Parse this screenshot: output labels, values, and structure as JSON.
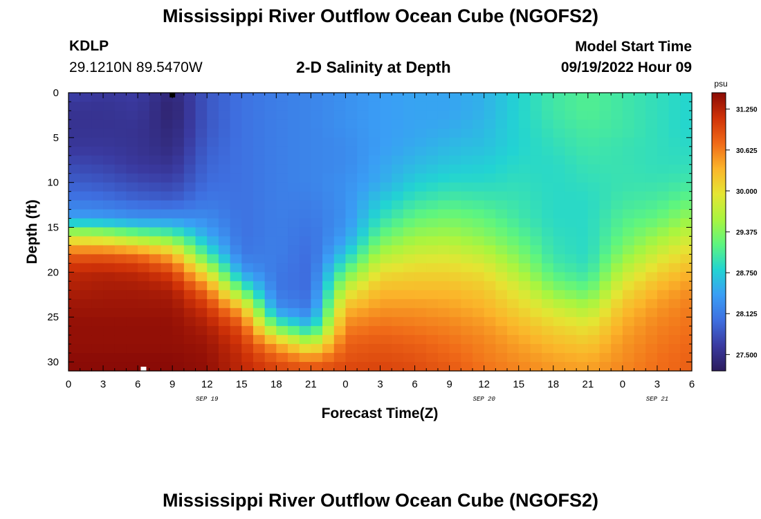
{
  "header": {
    "title": "Mississippi River Outflow Ocean Cube (NGOFS2)",
    "station_id": "KDLP",
    "station_coords": "29.1210N  89.5470W",
    "plot_title": "2-D Salinity at Depth",
    "model_start_label": "Model Start Time",
    "model_start_value": "09/19/2022 Hour 09"
  },
  "footer": {
    "title": "Mississippi River Outflow Ocean Cube (NGOFS2)"
  },
  "colors": {
    "ramp": [
      "#2b1b5c",
      "#3a3aa0",
      "#3e6fe0",
      "#3a9ef5",
      "#22d4d2",
      "#5ef57f",
      "#a9f53f",
      "#e5e533",
      "#fbb52a",
      "#f06a18",
      "#cf3208",
      "#8a0b06"
    ],
    "axis": "#000000",
    "marker_surface": "#000000",
    "marker_bottom": "#ffffff"
  },
  "chart_data": {
    "type": "heatmap",
    "title": "2-D Salinity at Depth",
    "xlabel": "Forecast Time(Z)",
    "ylabel": "Depth (ft)",
    "x_unit": "hours from 2022-09-19 00Z",
    "xlim": [
      0,
      54
    ],
    "ylim": [
      31,
      0
    ],
    "x_ticks": [
      0,
      3,
      6,
      9,
      12,
      15,
      18,
      21,
      24,
      27,
      30,
      33,
      36,
      39,
      42,
      45,
      48,
      51,
      54
    ],
    "x_tick_labels": [
      "0",
      "3",
      "6",
      "9",
      "12",
      "15",
      "18",
      "21",
      "0",
      "3",
      "6",
      "9",
      "12",
      "15",
      "18",
      "21",
      "0",
      "3",
      "6"
    ],
    "y_ticks": [
      0,
      5,
      10,
      15,
      20,
      25,
      30
    ],
    "y_tick_labels": [
      "0",
      "5",
      "10",
      "15",
      "20",
      "25",
      "30"
    ],
    "date_labels": [
      {
        "x": 12,
        "text": "SEP 19"
      },
      {
        "x": 36,
        "text": "SEP 20"
      },
      {
        "x": 51,
        "text": "SEP 21"
      }
    ],
    "colorbar": {
      "unit": "psu",
      "min": 27.25,
      "max": 31.5,
      "ticks": [
        27.5,
        28.125,
        28.75,
        29.375,
        30.0,
        30.625,
        31.25
      ],
      "tick_labels": [
        "27.500",
        "28.125",
        "28.750",
        "29.375",
        "30.000",
        "30.625",
        "31.250"
      ]
    },
    "depth_levels_ft": [
      0,
      2,
      4,
      6,
      8,
      10,
      12,
      14,
      16,
      18,
      20,
      22,
      24,
      26,
      28,
      30,
      31
    ],
    "profile_times": [
      0,
      3,
      6,
      9,
      12,
      15,
      18,
      21,
      24,
      27,
      30,
      33,
      36,
      39,
      42,
      45,
      48,
      51,
      54
    ],
    "salinity": [
      [
        27.7,
        27.55,
        27.55,
        27.6,
        27.75,
        27.9,
        28.1,
        28.45,
        29.8,
        30.8,
        31.2,
        31.3,
        31.4,
        31.45,
        31.45,
        31.5,
        31.5
      ],
      [
        27.6,
        27.55,
        27.55,
        27.6,
        27.7,
        27.85,
        28.05,
        28.4,
        29.7,
        30.8,
        31.25,
        31.35,
        31.4,
        31.45,
        31.45,
        31.5,
        31.5
      ],
      [
        27.65,
        27.6,
        27.55,
        27.55,
        27.6,
        27.75,
        27.95,
        28.3,
        29.4,
        30.7,
        31.2,
        31.35,
        31.4,
        31.45,
        31.45,
        31.5,
        31.5
      ],
      [
        27.4,
        27.35,
        27.4,
        27.45,
        27.55,
        27.7,
        27.9,
        28.3,
        29.2,
        30.3,
        31.0,
        31.3,
        31.4,
        31.45,
        31.45,
        31.5,
        31.5
      ],
      [
        27.85,
        27.85,
        27.85,
        27.9,
        27.95,
        28.0,
        28.1,
        28.25,
        28.5,
        29.0,
        29.9,
        30.7,
        31.1,
        31.3,
        31.4,
        31.45,
        31.45
      ],
      [
        28.05,
        28.05,
        28.05,
        28.05,
        28.05,
        28.05,
        28.05,
        28.05,
        28.05,
        28.1,
        28.4,
        29.2,
        30.3,
        30.9,
        31.1,
        31.2,
        31.2
      ],
      [
        28.15,
        28.15,
        28.15,
        28.15,
        28.15,
        28.15,
        28.15,
        28.15,
        28.15,
        28.15,
        28.1,
        28.1,
        28.3,
        29.2,
        30.4,
        30.9,
        31.0
      ],
      [
        28.2,
        28.2,
        28.2,
        28.2,
        28.2,
        28.2,
        28.15,
        28.1,
        28.05,
        28.0,
        28.0,
        28.0,
        28.1,
        28.6,
        29.7,
        30.7,
        30.9
      ],
      [
        28.3,
        28.3,
        28.3,
        28.25,
        28.25,
        28.3,
        28.3,
        28.3,
        28.4,
        28.7,
        29.2,
        29.8,
        30.3,
        30.6,
        30.8,
        30.9,
        31.0
      ],
      [
        28.4,
        28.4,
        28.4,
        28.4,
        28.45,
        28.5,
        28.7,
        28.9,
        29.2,
        29.6,
        30.0,
        30.3,
        30.5,
        30.7,
        30.85,
        30.95,
        31.0
      ],
      [
        28.45,
        28.45,
        28.45,
        28.5,
        28.6,
        28.75,
        28.95,
        29.2,
        29.5,
        29.8,
        30.1,
        30.3,
        30.5,
        30.65,
        30.8,
        30.9,
        30.95
      ],
      [
        28.45,
        28.45,
        28.5,
        28.6,
        28.7,
        28.85,
        29.05,
        29.3,
        29.55,
        29.85,
        30.1,
        30.3,
        30.45,
        30.6,
        30.7,
        30.8,
        30.85
      ],
      [
        28.55,
        28.55,
        28.6,
        28.65,
        28.75,
        28.85,
        29.0,
        29.2,
        29.4,
        29.7,
        30.0,
        30.2,
        30.35,
        30.5,
        30.6,
        30.65,
        30.7
      ],
      [
        28.8,
        28.8,
        28.8,
        28.8,
        28.85,
        28.9,
        28.95,
        29.0,
        29.15,
        29.35,
        29.6,
        29.9,
        30.1,
        30.3,
        30.45,
        30.55,
        30.6
      ],
      [
        29.0,
        29.0,
        28.95,
        28.9,
        28.85,
        28.85,
        28.85,
        28.85,
        28.9,
        28.95,
        29.1,
        29.4,
        29.8,
        30.1,
        30.3,
        30.45,
        30.5
      ],
      [
        29.1,
        29.1,
        29.05,
        29.0,
        28.95,
        28.9,
        28.85,
        28.85,
        28.85,
        28.85,
        28.95,
        29.2,
        29.6,
        29.95,
        30.2,
        30.4,
        30.45
      ],
      [
        29.0,
        29.0,
        29.0,
        28.95,
        28.95,
        28.95,
        29.0,
        29.1,
        29.2,
        29.4,
        29.7,
        30.0,
        30.25,
        30.4,
        30.5,
        30.55,
        30.6
      ],
      [
        28.9,
        28.9,
        28.9,
        28.9,
        28.9,
        28.95,
        29.05,
        29.2,
        29.5,
        29.8,
        30.1,
        30.35,
        30.5,
        30.6,
        30.65,
        30.7,
        30.7
      ],
      [
        28.8,
        28.8,
        28.8,
        28.85,
        28.9,
        29.0,
        29.2,
        29.5,
        29.8,
        30.1,
        30.35,
        30.55,
        30.65,
        30.7,
        30.75,
        30.8,
        30.8
      ]
    ],
    "markers": [
      {
        "name": "surface-marker",
        "x": 9,
        "depth": 0.25
      },
      {
        "name": "bottom-marker",
        "x": 6.5,
        "depth": 30.8
      }
    ]
  }
}
